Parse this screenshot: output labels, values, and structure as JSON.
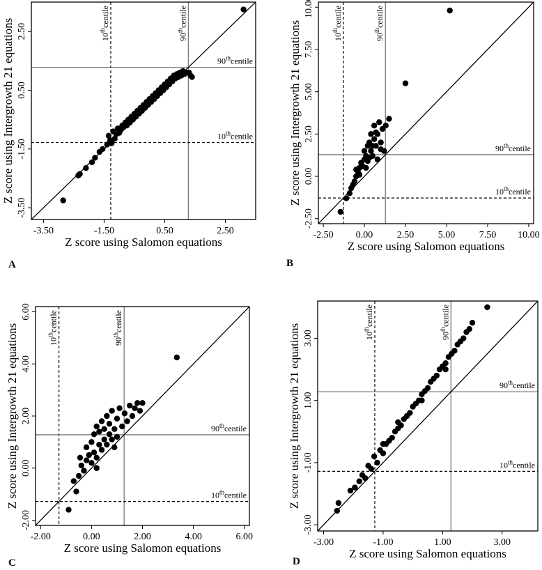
{
  "chart_data": [
    {
      "panel": "A",
      "type": "scatter",
      "xlabel": "Z score using Salomon equations",
      "ylabel": "Z score using Intergrowth 21 equations",
      "xlim": [
        -3.9,
        3.5
      ],
      "ylim": [
        -3.9,
        3.5
      ],
      "xticks": [
        "-3.50",
        "-1.50",
        "0.50",
        "2.50"
      ],
      "xtick_values": [
        -3.5,
        -1.5,
        0.5,
        2.5
      ],
      "yticks": [
        "-3.50",
        "-1.50",
        "0.50",
        "2.50"
      ],
      "ytick_values": [
        -3.5,
        -1.5,
        0.5,
        2.5
      ],
      "grid": false,
      "identity_line": true,
      "reference_lines": [
        {
          "axis": "x",
          "value": -1.28,
          "style": "dashed",
          "label_base": "10",
          "label_sup": "th",
          "label_rest": "centile"
        },
        {
          "axis": "x",
          "value": 1.28,
          "style": "solid",
          "label_base": "90",
          "label_sup": "th",
          "label_rest": "centile"
        },
        {
          "axis": "y",
          "value": 1.28,
          "style": "solid",
          "label_base": "90",
          "label_sup": "th",
          "label_rest": "centile"
        },
        {
          "axis": "y",
          "value": -1.28,
          "style": "dashed",
          "label_base": "10",
          "label_sup": "th",
          "label_rest": "centile"
        }
      ],
      "points": [
        [
          -2.85,
          -3.25
        ],
        [
          -2.35,
          -2.4
        ],
        [
          -2.3,
          -2.35
        ],
        [
          -2.1,
          -2.15
        ],
        [
          -1.9,
          -1.95
        ],
        [
          -1.8,
          -1.8
        ],
        [
          -1.65,
          -1.6
        ],
        [
          -1.55,
          -1.5
        ],
        [
          -1.4,
          -1.35
        ],
        [
          -1.35,
          -1.05
        ],
        [
          -1.3,
          -1.2
        ],
        [
          -1.25,
          -1.3
        ],
        [
          -1.2,
          -0.9
        ],
        [
          -1.15,
          -1.15
        ],
        [
          -1.1,
          -1.0
        ],
        [
          -1.05,
          -0.8
        ],
        [
          -1.0,
          -0.95
        ],
        [
          -0.95,
          -0.85
        ],
        [
          -0.9,
          -0.7
        ],
        [
          -0.85,
          -0.75
        ],
        [
          -0.8,
          -0.6
        ],
        [
          -0.75,
          -0.7
        ],
        [
          -0.7,
          -0.5
        ],
        [
          -0.65,
          -0.6
        ],
        [
          -0.6,
          -0.4
        ],
        [
          -0.55,
          -0.5
        ],
        [
          -0.5,
          -0.3
        ],
        [
          -0.45,
          -0.4
        ],
        [
          -0.4,
          -0.2
        ],
        [
          -0.35,
          -0.3
        ],
        [
          -0.3,
          -0.1
        ],
        [
          -0.25,
          -0.2
        ],
        [
          -0.2,
          0.0
        ],
        [
          -0.15,
          -0.1
        ],
        [
          -0.1,
          0.1
        ],
        [
          -0.05,
          0.0
        ],
        [
          0.0,
          0.2
        ],
        [
          0.05,
          0.1
        ],
        [
          0.1,
          0.3
        ],
        [
          0.15,
          0.2
        ],
        [
          0.2,
          0.4
        ],
        [
          0.25,
          0.3
        ],
        [
          0.3,
          0.5
        ],
        [
          0.35,
          0.4
        ],
        [
          0.4,
          0.6
        ],
        [
          0.45,
          0.5
        ],
        [
          0.5,
          0.7
        ],
        [
          0.55,
          0.6
        ],
        [
          0.6,
          0.8
        ],
        [
          0.65,
          0.7
        ],
        [
          0.7,
          0.9
        ],
        [
          0.75,
          0.8
        ],
        [
          0.8,
          1.0
        ],
        [
          0.85,
          0.9
        ],
        [
          0.9,
          1.05
        ],
        [
          0.95,
          0.95
        ],
        [
          1.0,
          1.1
        ],
        [
          1.05,
          1.0
        ],
        [
          1.1,
          1.15
        ],
        [
          1.15,
          1.05
        ],
        [
          1.2,
          1.1
        ],
        [
          1.3,
          1.1
        ],
        [
          1.35,
          1.0
        ],
        [
          1.4,
          0.95
        ],
        [
          3.1,
          3.25
        ]
      ]
    },
    {
      "panel": "B",
      "type": "scatter",
      "xlabel": "Z score using Salomon equations",
      "ylabel": "Z score using Intergrowth 21 equations",
      "xlim": [
        -2.8,
        10.3
      ],
      "ylim": [
        -2.8,
        10.3
      ],
      "xticks": [
        "-2.50",
        "0.00",
        "2.50",
        "5.00",
        "7.50",
        "10.00"
      ],
      "xtick_values": [
        -2.5,
        0,
        2.5,
        5,
        7.5,
        10
      ],
      "yticks": [
        "-2.50",
        "0.00",
        "2.50",
        "5.00",
        "7.50",
        "10.00"
      ],
      "ytick_values": [
        -2.5,
        0,
        2.5,
        5,
        7.5,
        10
      ],
      "grid": false,
      "identity_line": true,
      "reference_lines": [
        {
          "axis": "x",
          "value": -1.28,
          "style": "dashed",
          "label_base": "10",
          "label_sup": "th",
          "label_rest": "centile"
        },
        {
          "axis": "x",
          "value": 1.28,
          "style": "solid",
          "label_base": "90",
          "label_sup": "th",
          "label_rest": "centile"
        },
        {
          "axis": "y",
          "value": 1.28,
          "style": "solid",
          "label_base": "90",
          "label_sup": "th",
          "label_rest": "centile"
        },
        {
          "axis": "y",
          "value": -1.28,
          "style": "dashed",
          "label_base": "10",
          "label_sup": "th",
          "label_rest": "centile"
        }
      ],
      "points": [
        [
          -1.45,
          -2.1
        ],
        [
          -1.1,
          -1.3
        ],
        [
          -0.9,
          -1.0
        ],
        [
          -0.7,
          -0.5
        ],
        [
          -0.6,
          -0.3
        ],
        [
          -0.5,
          0.0
        ],
        [
          -0.4,
          0.3
        ],
        [
          -0.3,
          0.1
        ],
        [
          -0.3,
          0.5
        ],
        [
          -0.2,
          0.8
        ],
        [
          -0.1,
          0.6
        ],
        [
          0.0,
          1.0
        ],
        [
          0.0,
          1.5
        ],
        [
          0.1,
          1.2
        ],
        [
          0.2,
          1.8
        ],
        [
          0.2,
          0.9
        ],
        [
          0.3,
          2.0
        ],
        [
          0.4,
          1.5
        ],
        [
          0.4,
          2.5
        ],
        [
          0.5,
          1.2
        ],
        [
          0.6,
          2.2
        ],
        [
          0.6,
          3.0
        ],
        [
          0.7,
          1.8
        ],
        [
          0.8,
          2.5
        ],
        [
          0.8,
          1.0
        ],
        [
          0.9,
          3.2
        ],
        [
          1.0,
          2.0
        ],
        [
          1.1,
          2.8
        ],
        [
          1.2,
          1.5
        ],
        [
          1.3,
          3.0
        ],
        [
          1.5,
          3.4
        ],
        [
          -0.8,
          -0.7
        ],
        [
          -0.5,
          0.4
        ],
        [
          0.1,
          0.5
        ],
        [
          0.3,
          1.1
        ],
        [
          0.5,
          1.8
        ],
        [
          0.7,
          2.6
        ],
        [
          1.0,
          1.6
        ],
        [
          2.5,
          5.5
        ],
        [
          5.2,
          9.8
        ]
      ]
    },
    {
      "panel": "C",
      "type": "scatter",
      "xlabel": "Z score using Salomon equations",
      "ylabel": "Z score using Intergrowth 21 equations",
      "xlim": [
        -2.2,
        6.2
      ],
      "ylim": [
        -2.2,
        6.2
      ],
      "xticks": [
        "-2.00",
        "0.00",
        "2.00",
        "4.00",
        "6.00"
      ],
      "xtick_values": [
        -2,
        0,
        2,
        4,
        6
      ],
      "yticks": [
        "-2.00",
        "0.00",
        "2.00",
        "4.00",
        "6.00"
      ],
      "ytick_values": [
        -2,
        0,
        2,
        4,
        6
      ],
      "grid": false,
      "identity_line": true,
      "reference_lines": [
        {
          "axis": "x",
          "value": -1.28,
          "style": "dashed",
          "label_base": "10",
          "label_sup": "th",
          "label_rest": "centile"
        },
        {
          "axis": "x",
          "value": 1.28,
          "style": "solid",
          "label_base": "90",
          "label_sup": "th",
          "label_rest": "centile"
        },
        {
          "axis": "y",
          "value": 1.28,
          "style": "solid",
          "label_base": "90",
          "label_sup": "th",
          "label_rest": "centile"
        },
        {
          "axis": "y",
          "value": -1.28,
          "style": "dashed",
          "label_base": "10",
          "label_sup": "th",
          "label_rest": "centile"
        }
      ],
      "points": [
        [
          -0.9,
          -1.6
        ],
        [
          -0.6,
          -0.9
        ],
        [
          -0.5,
          -0.3
        ],
        [
          -0.45,
          0.4
        ],
        [
          -0.4,
          0.1
        ],
        [
          -0.3,
          -0.1
        ],
        [
          -0.2,
          0.3
        ],
        [
          -0.2,
          0.8
        ],
        [
          -0.1,
          0.5
        ],
        [
          0.0,
          0.2
        ],
        [
          0.0,
          1.0
        ],
        [
          0.1,
          0.6
        ],
        [
          0.1,
          1.3
        ],
        [
          0.2,
          0.4
        ],
        [
          0.2,
          1.6
        ],
        [
          0.3,
          0.9
        ],
        [
          0.3,
          1.4
        ],
        [
          0.4,
          0.7
        ],
        [
          0.4,
          1.8
        ],
        [
          0.5,
          1.1
        ],
        [
          0.5,
          1.5
        ],
        [
          0.6,
          0.9
        ],
        [
          0.6,
          2.0
        ],
        [
          0.7,
          1.3
        ],
        [
          0.7,
          1.7
        ],
        [
          0.8,
          1.1
        ],
        [
          0.8,
          2.2
        ],
        [
          0.9,
          1.5
        ],
        [
          1.0,
          1.2
        ],
        [
          1.0,
          1.9
        ],
        [
          1.1,
          2.3
        ],
        [
          1.2,
          1.6
        ],
        [
          1.3,
          2.1
        ],
        [
          1.4,
          1.8
        ],
        [
          1.5,
          2.4
        ],
        [
          1.6,
          2.0
        ],
        [
          1.7,
          2.3
        ],
        [
          1.8,
          2.5
        ],
        [
          1.9,
          2.2
        ],
        [
          2.0,
          2.5
        ],
        [
          -0.7,
          -0.5
        ],
        [
          0.2,
          0.0
        ],
        [
          0.9,
          0.8
        ],
        [
          3.35,
          4.25
        ]
      ]
    },
    {
      "panel": "D",
      "type": "scatter",
      "xlabel": "Z score using Salomon equations",
      "ylabel": "Z score using Intergrowth 21 equations",
      "xlim": [
        -3.2,
        4.2
      ],
      "ylim": [
        -3.2,
        4.2
      ],
      "xticks": [
        "-3.00",
        "-1.00",
        "1.00",
        "3.00"
      ],
      "xtick_values": [
        -3,
        -1,
        1,
        3
      ],
      "yticks": [
        "-3.00",
        "-1.00",
        "1.00",
        "3.00"
      ],
      "ytick_values": [
        -3,
        -1,
        1,
        3
      ],
      "grid": false,
      "identity_line": true,
      "reference_lines": [
        {
          "axis": "x",
          "value": -1.28,
          "style": "dashed",
          "label_base": "10",
          "label_sup": "th",
          "label_rest": "centile"
        },
        {
          "axis": "x",
          "value": 1.28,
          "style": "solid",
          "label_base": "90",
          "label_sup": "th",
          "label_rest": "centile"
        },
        {
          "axis": "y",
          "value": 1.28,
          "style": "solid",
          "label_base": "90",
          "label_sup": "th",
          "label_rest": "centile"
        },
        {
          "axis": "y",
          "value": -1.28,
          "style": "dashed",
          "label_base": "10",
          "label_sup": "th",
          "label_rest": "centile"
        }
      ],
      "points": [
        [
          -2.55,
          -2.55
        ],
        [
          -2.5,
          -2.3
        ],
        [
          -2.1,
          -1.9
        ],
        [
          -1.95,
          -1.8
        ],
        [
          -1.8,
          -1.6
        ],
        [
          -1.7,
          -1.4
        ],
        [
          -1.6,
          -1.5
        ],
        [
          -1.5,
          -1.1
        ],
        [
          -1.4,
          -1.2
        ],
        [
          -1.3,
          -0.8
        ],
        [
          -1.2,
          -1.0
        ],
        [
          -1.1,
          -0.6
        ],
        [
          -1.0,
          -0.7
        ],
        [
          -0.9,
          -0.4
        ],
        [
          -0.8,
          -0.3
        ],
        [
          -0.7,
          -0.2
        ],
        [
          -0.6,
          0.0
        ],
        [
          -0.5,
          0.1
        ],
        [
          -0.4,
          0.2
        ],
        [
          -0.3,
          0.4
        ],
        [
          -0.2,
          0.5
        ],
        [
          -0.1,
          0.6
        ],
        [
          0.0,
          0.8
        ],
        [
          0.1,
          0.9
        ],
        [
          0.2,
          1.0
        ],
        [
          0.3,
          1.2
        ],
        [
          0.4,
          1.3
        ],
        [
          0.5,
          1.4
        ],
        [
          0.6,
          1.6
        ],
        [
          0.7,
          1.7
        ],
        [
          0.8,
          1.8
        ],
        [
          0.9,
          2.0
        ],
        [
          1.0,
          2.1
        ],
        [
          1.1,
          2.2
        ],
        [
          1.2,
          2.4
        ],
        [
          1.3,
          2.5
        ],
        [
          1.4,
          2.6
        ],
        [
          1.5,
          2.8
        ],
        [
          1.6,
          2.9
        ],
        [
          1.7,
          3.0
        ],
        [
          1.8,
          3.2
        ],
        [
          1.9,
          3.3
        ],
        [
          2.0,
          3.5
        ],
        [
          2.5,
          4.0
        ],
        [
          -1.0,
          -0.4
        ],
        [
          0.3,
          1.0
        ],
        [
          1.1,
          2.0
        ],
        [
          -0.5,
          0.3
        ]
      ]
    }
  ]
}
